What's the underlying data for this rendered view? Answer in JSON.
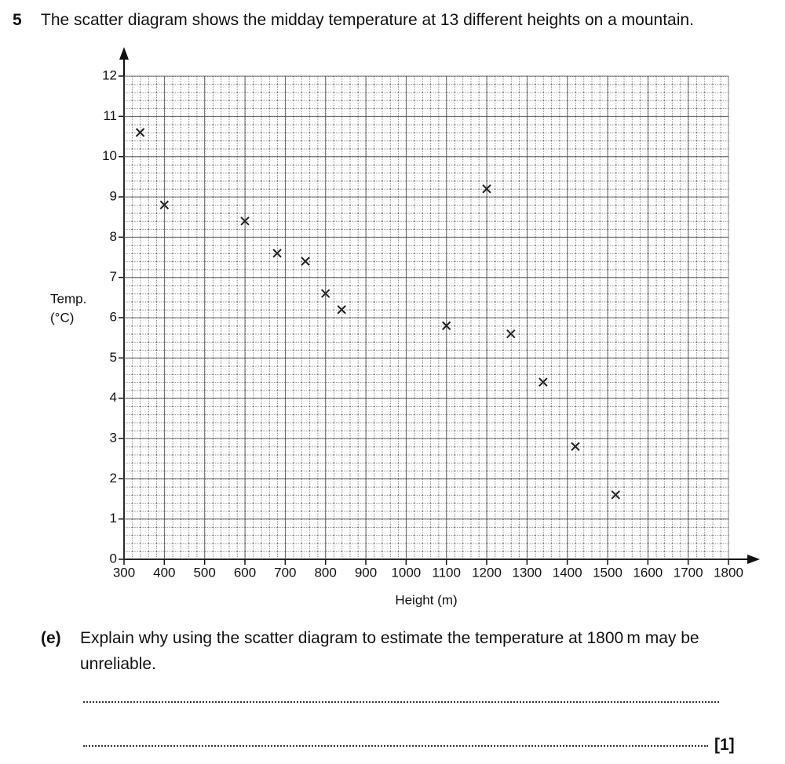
{
  "question": {
    "number": "5",
    "text": "The scatter diagram shows the midday temperature at 13 different heights on a mountain."
  },
  "part": {
    "label": "(e)",
    "line1": "Explain why using the scatter diagram to estimate the temperature at 1800 m may be",
    "line2": "unreliable.",
    "marks": "[1]"
  },
  "chart_data": {
    "type": "scatter",
    "x_label": "Height (m)",
    "y_label": [
      "Temp.",
      "(°C)"
    ],
    "x": [
      340,
      400,
      600,
      680,
      750,
      800,
      840,
      1100,
      1200,
      1260,
      1340,
      1420,
      1520
    ],
    "values": [
      10.6,
      8.8,
      8.4,
      7.6,
      7.4,
      6.6,
      6.2,
      5.8,
      9.2,
      5.6,
      4.4,
      2.8,
      1.6
    ],
    "color": "#222",
    "xlim": [
      300,
      1800
    ],
    "ylim": [
      0,
      12
    ],
    "xticks": [
      300,
      400,
      500,
      600,
      700,
      800,
      900,
      1000,
      1100,
      1200,
      1300,
      1400,
      1500,
      1600,
      1700,
      1800
    ],
    "yticks": [
      0,
      1,
      2,
      3,
      4,
      5,
      6,
      7,
      8,
      9,
      10,
      11,
      12
    ],
    "grid": true
  }
}
